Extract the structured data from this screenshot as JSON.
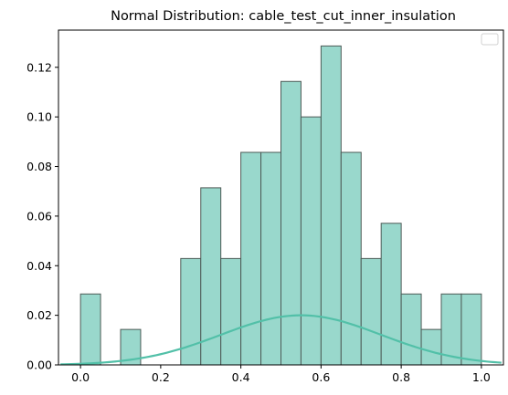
{
  "chart_data": {
    "type": "bar",
    "title": "Normal Distribution: cable_test_cut_inner_insulation",
    "xlabel": "",
    "ylabel": "",
    "xlim": [
      -0.055,
      1.055
    ],
    "ylim": [
      0,
      0.135
    ],
    "x_ticks": [
      0.0,
      0.2,
      0.4,
      0.6,
      0.8,
      1.0
    ],
    "x_tick_labels": [
      "0.0",
      "0.2",
      "0.4",
      "0.6",
      "0.8",
      "1.0"
    ],
    "y_ticks": [
      0.0,
      0.02,
      0.04,
      0.06,
      0.08,
      0.1,
      0.12
    ],
    "y_tick_labels": [
      "0.00",
      "0.02",
      "0.04",
      "0.06",
      "0.08",
      "0.10",
      "0.12"
    ],
    "grid": false,
    "legend": {
      "location": "top-right",
      "entries": []
    },
    "histogram": {
      "bin_edges": [
        0.0,
        0.05,
        0.1,
        0.15,
        0.2,
        0.25,
        0.3,
        0.35,
        0.4,
        0.45,
        0.5,
        0.55,
        0.6,
        0.65,
        0.7,
        0.75,
        0.8,
        0.85,
        0.9,
        0.95,
        1.0
      ],
      "values": [
        0.0286,
        0.0,
        0.0143,
        0.0,
        0.0,
        0.0429,
        0.0714,
        0.0429,
        0.0857,
        0.0857,
        0.1143,
        0.1,
        0.1286,
        0.0857,
        0.0429,
        0.0571,
        0.0286,
        0.0143,
        0.0286,
        0.0286
      ],
      "fill_color": "#99d8cc",
      "edge_color": "#4d5a56"
    },
    "curve": {
      "type": "line",
      "mean": 0.55,
      "std": 0.2,
      "peak": 0.02,
      "x_range": [
        -0.05,
        1.05
      ],
      "color": "#52c0a8"
    }
  }
}
